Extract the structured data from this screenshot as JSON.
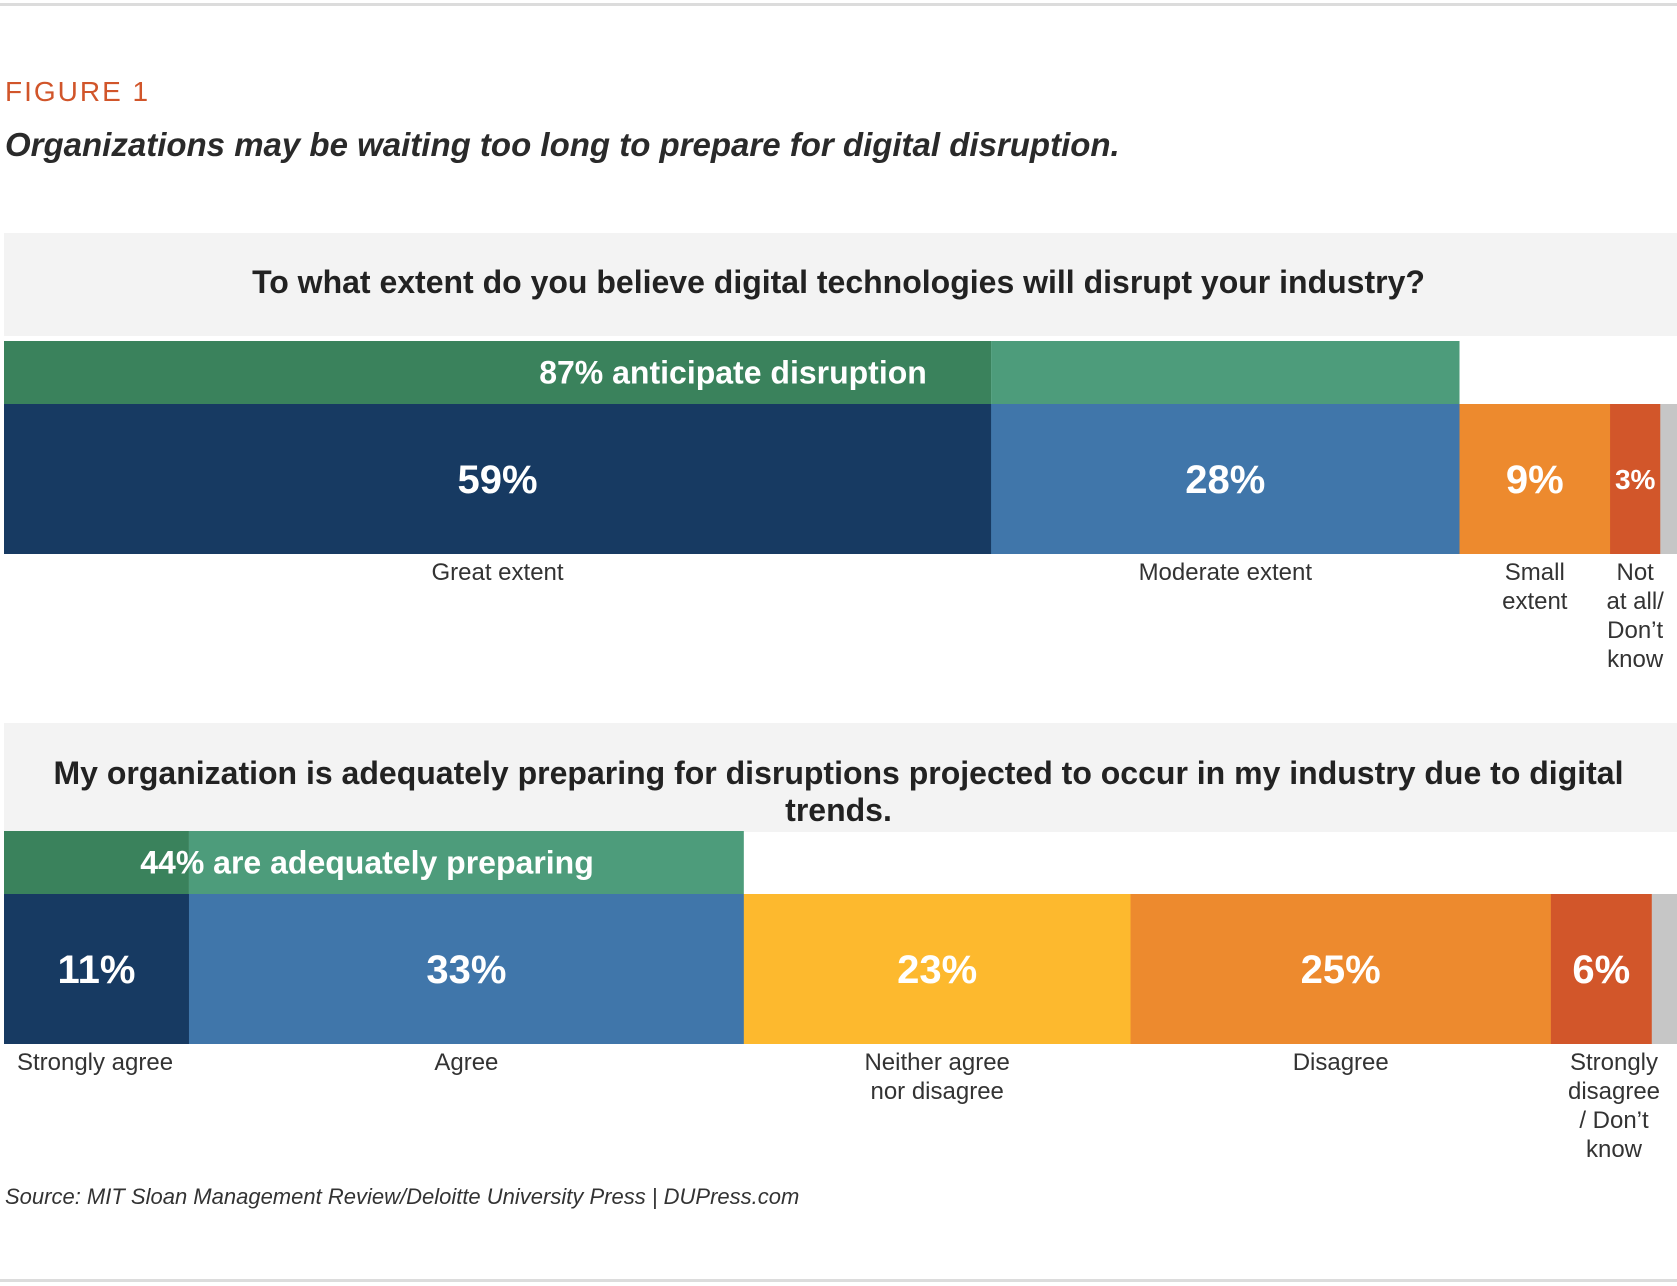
{
  "figure_label": "FIGURE 1",
  "figure_title": "Organizations may be waiting too long to prepare for digital disruption.",
  "source": "Source: MIT Sloan Management Review/Deloitte University Press | DUPress.com",
  "colors": {
    "dark_green": "#3a825c",
    "light_green": "#4d9c7b",
    "dark_blue": "#173a62",
    "mid_blue": "#4076aa",
    "yellow": "#fdb92e",
    "orange": "#ed8a2e",
    "red_orange": "#d2562a",
    "gray": "#c6c6c6"
  },
  "chart_data": [
    {
      "type": "bar",
      "orientation": "stacked-horizontal",
      "title": "To what extent do you believe digital technologies will disrupt your industry?",
      "unit": "%",
      "segments": [
        {
          "category": "Great extent",
          "value": 59,
          "label": "59%",
          "color": "#173a62"
        },
        {
          "category": "Moderate extent",
          "value": 28,
          "label": "28%",
          "color": "#4076aa"
        },
        {
          "category": "Small extent",
          "value": 9,
          "label": "9%",
          "color": "#ed8a2e"
        },
        {
          "category": "Not at all/ Don’t know",
          "value": 3,
          "label": "3%",
          "color": "#d2562a"
        },
        {
          "category": "",
          "value": 1,
          "label": "",
          "color": "#c6c6c6"
        }
      ],
      "category_labels": [
        [
          "Great extent"
        ],
        [
          "Moderate extent"
        ],
        [
          "Small",
          "extent"
        ],
        [
          "Not",
          "at all/",
          "Don’t",
          "know"
        ]
      ],
      "summary_bar": {
        "text": "87% anticipate disruption",
        "covers": [
          0,
          1
        ],
        "value": 87
      }
    },
    {
      "type": "bar",
      "orientation": "stacked-horizontal",
      "title": "My organization is adequately preparing for disruptions projected to occur in my industry due to digital trends.",
      "unit": "%",
      "segments": [
        {
          "category": "Strongly agree",
          "value": 11,
          "label": "11%",
          "color": "#173a62"
        },
        {
          "category": "Agree",
          "value": 33,
          "label": "33%",
          "color": "#4076aa"
        },
        {
          "category": "Neither agree nor disagree",
          "value": 23,
          "label": "23%",
          "color": "#fdb92e"
        },
        {
          "category": "Disagree",
          "value": 25,
          "label": "25%",
          "color": "#ed8a2e"
        },
        {
          "category": "Strongly disagree / Don’t know",
          "value": 6,
          "label": "6%",
          "color": "#d2562a"
        },
        {
          "category": "",
          "value": 1.5,
          "label": "",
          "color": "#c6c6c6"
        }
      ],
      "category_labels": [
        [
          "Strongly agree"
        ],
        [
          "Agree"
        ],
        [
          "Neither agree",
          "nor disagree"
        ],
        [
          "Disagree"
        ],
        [
          "Strongly",
          "disagree",
          "/ Don’t",
          "know"
        ]
      ],
      "summary_bar": {
        "text": "44% are adequately preparing",
        "covers": [
          0,
          1
        ],
        "value": 44
      }
    }
  ]
}
